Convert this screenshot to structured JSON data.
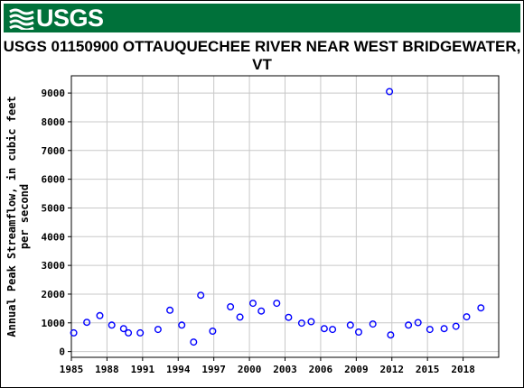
{
  "header": {
    "logo_text": "USGS",
    "logo_icon": "usgs-wave-icon",
    "brand_color": "#00713a"
  },
  "chart_data": {
    "type": "scatter",
    "title": "USGS 01150900 OTTAUQUECHEE RIVER NEAR WEST BRIDGEWATER, VT",
    "xlabel": "",
    "ylabel": "Annual Peak Streamflow, in cubic feet per second",
    "ylabel_lines": [
      "Annual Peak Streamflow, in cubic feet",
      "per second"
    ],
    "xlim": [
      1985,
      2021
    ],
    "ylim": [
      -200,
      9600
    ],
    "x_ticks": [
      1985,
      1988,
      1991,
      1994,
      1997,
      2000,
      2003,
      2006,
      2009,
      2012,
      2015,
      2018
    ],
    "y_ticks": [
      0,
      1000,
      2000,
      3000,
      4000,
      5000,
      6000,
      7000,
      8000,
      9000
    ],
    "grid": true,
    "marker_color": "#0000ff",
    "points": [
      {
        "x": 1985.2,
        "y": 650
      },
      {
        "x": 1986.3,
        "y": 1020
      },
      {
        "x": 1987.4,
        "y": 1250
      },
      {
        "x": 1988.4,
        "y": 920
      },
      {
        "x": 1989.4,
        "y": 800
      },
      {
        "x": 1989.8,
        "y": 650
      },
      {
        "x": 1990.8,
        "y": 650
      },
      {
        "x": 1992.3,
        "y": 770
      },
      {
        "x": 1993.3,
        "y": 1440
      },
      {
        "x": 1994.3,
        "y": 920
      },
      {
        "x": 1995.3,
        "y": 330
      },
      {
        "x": 1995.9,
        "y": 1960
      },
      {
        "x": 1996.9,
        "y": 710
      },
      {
        "x": 1998.4,
        "y": 1560
      },
      {
        "x": 1999.2,
        "y": 1200
      },
      {
        "x": 2000.3,
        "y": 1680
      },
      {
        "x": 2001.0,
        "y": 1410
      },
      {
        "x": 2002.3,
        "y": 1680
      },
      {
        "x": 2003.3,
        "y": 1190
      },
      {
        "x": 2004.4,
        "y": 990
      },
      {
        "x": 2005.2,
        "y": 1040
      },
      {
        "x": 2006.3,
        "y": 800
      },
      {
        "x": 2007.0,
        "y": 770
      },
      {
        "x": 2008.5,
        "y": 920
      },
      {
        "x": 2009.2,
        "y": 680
      },
      {
        "x": 2010.4,
        "y": 960
      },
      {
        "x": 2011.8,
        "y": 9050
      },
      {
        "x": 2011.9,
        "y": 580
      },
      {
        "x": 2013.4,
        "y": 920
      },
      {
        "x": 2014.2,
        "y": 1010
      },
      {
        "x": 2015.2,
        "y": 770
      },
      {
        "x": 2016.4,
        "y": 800
      },
      {
        "x": 2017.4,
        "y": 880
      },
      {
        "x": 2018.3,
        "y": 1210
      },
      {
        "x": 2019.5,
        "y": 1520
      }
    ]
  }
}
